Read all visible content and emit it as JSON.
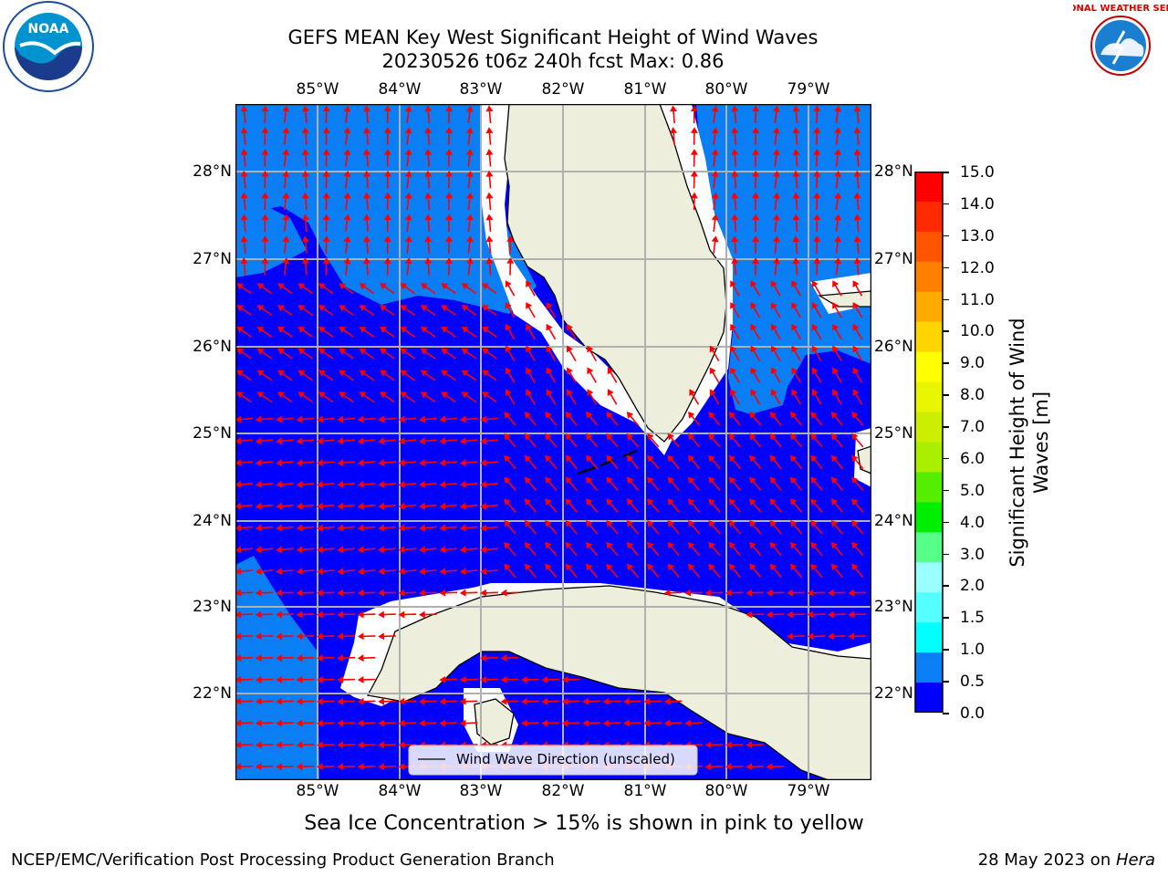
{
  "header": {
    "title_line1": "GEFS MEAN Key West Significant Height of Wind Waves",
    "title_line2": "20230526 t06z 240h fcst   Max: 0.86"
  },
  "logos": {
    "left": "NOAA",
    "right": "NATIONAL WEATHER SERVICE"
  },
  "map": {
    "lon_ticks": [
      "85°W",
      "84°W",
      "83°W",
      "82°W",
      "81°W",
      "80°W",
      "79°W"
    ],
    "lat_ticks": [
      "28°N",
      "27°N",
      "26°N",
      "25°N",
      "24°N",
      "23°N",
      "22°N"
    ],
    "legend_label": "Wind Wave Direction (unscaled)",
    "colors": {
      "ocean_low": "#0000ff",
      "ocean_mid": "#0a7ff5",
      "land": "#eeeedd",
      "arrow": "#ff0000",
      "grid": "#b0b0b0"
    }
  },
  "colorbar": {
    "title": "Significant Height of Wind Waves [m]",
    "title_line1": "Significant Height of Wind",
    "title_line2": "Waves [m]",
    "labels": [
      "15.0",
      "14.0",
      "13.0",
      "12.0",
      "11.0",
      "10.0",
      "9.0",
      "8.0",
      "7.0",
      "6.0",
      "5.0",
      "4.0",
      "3.0",
      "2.0",
      "1.5",
      "1.0",
      "0.5",
      "0.0"
    ],
    "colors": [
      "#ff0000",
      "#ff2a00",
      "#ff5500",
      "#ff8000",
      "#ffaa00",
      "#ffd500",
      "#ffff00",
      "#e8f500",
      "#ccee00",
      "#aaee00",
      "#55ee00",
      "#00ee00",
      "#55ff88",
      "#99ffff",
      "#55ffff",
      "#00ffff",
      "#0a7ff5",
      "#0000ff"
    ]
  },
  "footer": {
    "note": "Sea Ice Concentration > 15% is shown in pink to yellow",
    "left": "NCEP/EMC/Verification Post Processing Product Generation Branch",
    "right_prefix": "28 May 2023 on ",
    "right_machine": "Hera"
  }
}
